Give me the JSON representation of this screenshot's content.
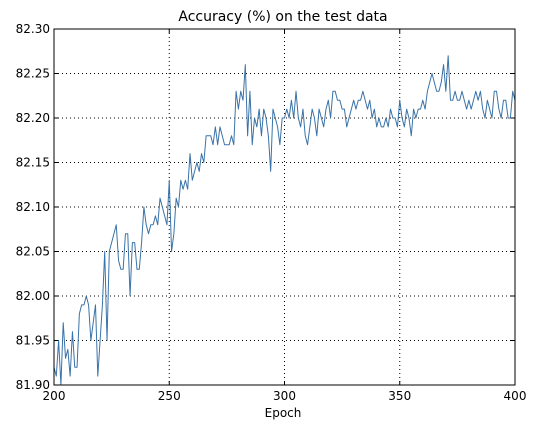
{
  "chart_data": {
    "type": "line",
    "title": "Accuracy (%) on the test data",
    "xlabel": "Epoch",
    "ylabel": "",
    "xlim": [
      200,
      400
    ],
    "ylim": [
      81.9,
      82.3
    ],
    "x_ticks": [
      200,
      250,
      300,
      350,
      400
    ],
    "x_tick_labels": [
      "200",
      "250",
      "300",
      "350",
      "400"
    ],
    "y_ticks": [
      81.9,
      81.95,
      82.0,
      82.05,
      82.1,
      82.15,
      82.2,
      82.25,
      82.3
    ],
    "y_tick_labels": [
      "81.90",
      "81.95",
      "82.00",
      "82.05",
      "82.10",
      "82.15",
      "82.20",
      "82.25",
      "82.30"
    ],
    "grid": true,
    "legend": "none",
    "line_color": "#3a73a9",
    "series": [
      {
        "x_start": 200,
        "x_step": 1,
        "values": [
          81.92,
          81.91,
          81.95,
          81.9,
          81.97,
          81.93,
          81.94,
          81.91,
          81.96,
          81.92,
          81.92,
          81.98,
          81.99,
          81.99,
          82.0,
          81.99,
          81.95,
          81.97,
          81.99,
          81.91,
          81.95,
          81.99,
          82.05,
          81.95,
          82.05,
          82.06,
          82.07,
          82.08,
          82.04,
          82.03,
          82.03,
          82.07,
          82.07,
          82.0,
          82.06,
          82.06,
          82.03,
          82.03,
          82.06,
          82.1,
          82.08,
          82.07,
          82.08,
          82.08,
          82.09,
          82.08,
          82.11,
          82.1,
          82.09,
          82.08,
          82.13,
          82.05,
          82.07,
          82.11,
          82.1,
          82.13,
          82.12,
          82.13,
          82.12,
          82.16,
          82.13,
          82.14,
          82.15,
          82.14,
          82.16,
          82.15,
          82.18,
          82.18,
          82.18,
          82.17,
          82.19,
          82.17,
          82.19,
          82.18,
          82.17,
          82.17,
          82.17,
          82.18,
          82.17,
          82.23,
          82.21,
          82.23,
          82.22,
          82.26,
          82.18,
          82.23,
          82.17,
          82.2,
          82.19,
          82.21,
          82.18,
          82.21,
          82.2,
          82.18,
          82.14,
          82.21,
          82.2,
          82.19,
          82.17,
          82.2,
          82.2,
          82.21,
          82.2,
          82.22,
          82.2,
          82.23,
          82.2,
          82.19,
          82.21,
          82.18,
          82.17,
          82.19,
          82.21,
          82.2,
          82.18,
          82.21,
          82.2,
          82.19,
          82.21,
          82.22,
          82.2,
          82.23,
          82.23,
          82.22,
          82.22,
          82.21,
          82.21,
          82.19,
          82.2,
          82.21,
          82.22,
          82.21,
          82.22,
          82.22,
          82.23,
          82.22,
          82.21,
          82.22,
          82.2,
          82.21,
          82.19,
          82.2,
          82.19,
          82.19,
          82.2,
          82.19,
          82.21,
          82.2,
          82.2,
          82.19,
          82.22,
          82.2,
          82.19,
          82.21,
          82.2,
          82.18,
          82.21,
          82.2,
          82.21,
          82.21,
          82.22,
          82.21,
          82.23,
          82.24,
          82.25,
          82.24,
          82.23,
          82.23,
          82.24,
          82.26,
          82.23,
          82.27,
          82.22,
          82.22,
          82.23,
          82.22,
          82.22,
          82.23,
          82.22,
          82.21,
          82.22,
          82.21,
          82.22,
          82.23,
          82.22,
          82.23,
          82.21,
          82.2,
          82.22,
          82.21,
          82.2,
          82.23,
          82.23,
          82.21,
          82.2,
          82.22,
          82.22,
          82.2,
          82.2,
          82.23,
          82.22
        ]
      }
    ]
  }
}
